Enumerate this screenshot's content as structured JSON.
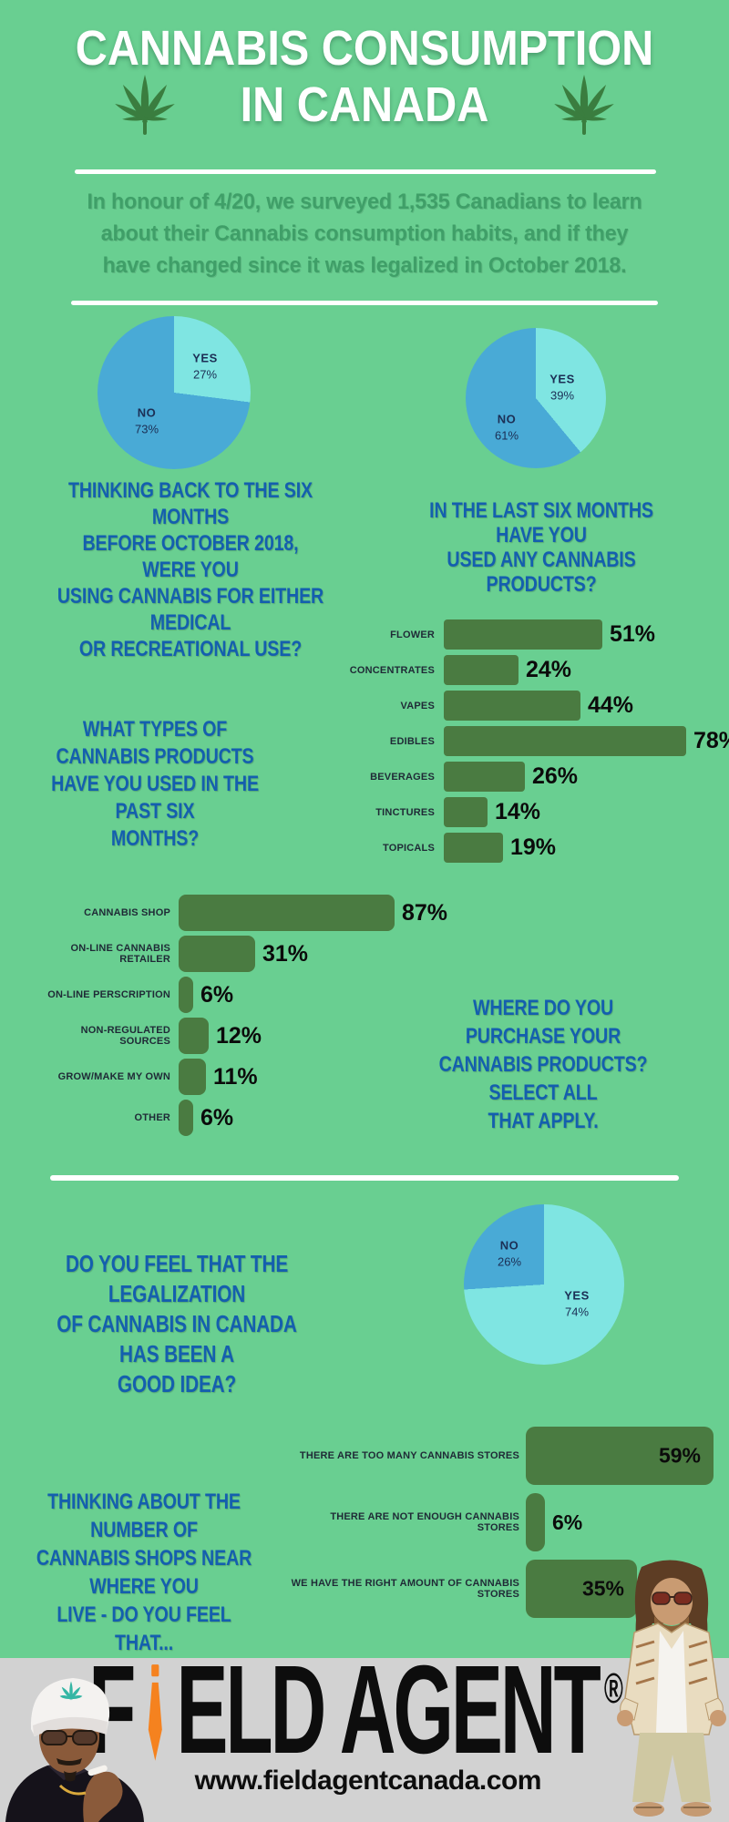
{
  "page": {
    "background_color": "#69cf91",
    "footer_background_color": "#d2d2d2",
    "accent_blue": "#145fae",
    "bar_green": "#4a7b41",
    "pie_yes_color": "#7fe5e2",
    "pie_no_color": "#49aad6",
    "tie_orange": "#f5821f"
  },
  "header": {
    "title_line1": "CANNABIS CONSUMPTION",
    "title_line2": "IN CANADA",
    "left_icon": "cannabis-leaf",
    "right_icon": "cannabis-leaf"
  },
  "intro": {
    "text": "In honour of 4/20, we surveyed 1,535 Canadians to learn\nabout their Cannabis consumption habits, and if they\nhave changed since it was legalized in October 2018."
  },
  "chart_data": [
    {
      "id": "before",
      "type": "pie",
      "title": "THINKING BACK TO THE SIX MONTHS\nBEFORE OCTOBER 2018, WERE YOU\nUSING CANNABIS FOR EITHER MEDICAL\nOR RECREATIONAL USE?",
      "slices": [
        {
          "label": "YES",
          "value": 27
        },
        {
          "label": "NO",
          "value": 73
        }
      ],
      "colors": [
        "#7fe5e2",
        "#49aad6"
      ],
      "unit": "%",
      "start_angle_deg": 0,
      "direction": "clockwise"
    },
    {
      "id": "last6",
      "type": "pie",
      "title": "IN THE LAST SIX MONTHS HAVE YOU\nUSED ANY CANNABIS PRODUCTS?",
      "slices": [
        {
          "label": "YES",
          "value": 39
        },
        {
          "label": "NO",
          "value": 61
        }
      ],
      "colors": [
        "#7fe5e2",
        "#49aad6"
      ],
      "unit": "%",
      "start_angle_deg": 0,
      "direction": "clockwise"
    },
    {
      "id": "products",
      "type": "bar",
      "title": "WHAT TYPES OF CANNABIS PRODUCTS\nHAVE YOU USED IN THE PAST SIX\nMONTHS?",
      "orientation": "horizontal",
      "categories": [
        "FLOWER",
        "CONCENTRATES",
        "VAPES",
        "EDIBLES",
        "BEVERAGES",
        "TINCTURES",
        "TOPICALS"
      ],
      "values": [
        51,
        24,
        44,
        78,
        26,
        14,
        19
      ],
      "unit": "%",
      "xlim": [
        0,
        100
      ],
      "grid": false,
      "value_labels": "outside-right"
    },
    {
      "id": "purchase",
      "type": "bar",
      "title": "WHERE DO YOU PURCHASE YOUR\nCANNABIS PRODUCTS? SELECT ALL\nTHAT APPLY.",
      "orientation": "horizontal",
      "categories": [
        "CANNABIS SHOP",
        "ON-LINE CANNABIS RETAILER",
        "ON-LINE PERSCRIPTION",
        "NON-REGULATED SOURCES",
        "GROW/MAKE MY OWN",
        "OTHER"
      ],
      "values": [
        87,
        31,
        6,
        12,
        11,
        6
      ],
      "unit": "%",
      "xlim": [
        0,
        100
      ],
      "grid": false,
      "value_labels": "outside-right"
    },
    {
      "id": "legal",
      "type": "pie",
      "title": "DO YOU FEEL THAT THE LEGALIZATION\nOF CANNABIS IN CANADA HAS BEEN A\nGOOD IDEA?",
      "slices": [
        {
          "label": "YES",
          "value": 74
        },
        {
          "label": "NO",
          "value": 26
        }
      ],
      "colors": [
        "#7fe5e2",
        "#49aad6"
      ],
      "unit": "%",
      "start_angle_deg": 0,
      "direction": "clockwise"
    },
    {
      "id": "stores",
      "type": "bar",
      "title": "THINKING ABOUT THE NUMBER OF\nCANNABIS SHOPS NEAR WHERE YOU\nLIVE - DO YOU FEEL THAT...",
      "orientation": "horizontal",
      "categories": [
        "THERE ARE TOO MANY CANNABIS STORES",
        "THERE ARE NOT ENOUGH CANNABIS STORES",
        "WE HAVE THE RIGHT AMOUNT OF CANNABIS STORES"
      ],
      "values": [
        59,
        6,
        35
      ],
      "unit": "%",
      "xlim": [
        0,
        100
      ],
      "grid": false,
      "value_labels": "inside-right-when-long"
    }
  ],
  "footer": {
    "logo_first_letter": "F",
    "logo_rest": "ELD AGENT",
    "logo_tie_icon": "orange-tie-as-letter-i",
    "registered_mark": "®",
    "url": "www.fieldagentcanada.com",
    "left_photo": "snoop-dogg-smoking",
    "right_photo": "the-dude-big-lebowski"
  }
}
